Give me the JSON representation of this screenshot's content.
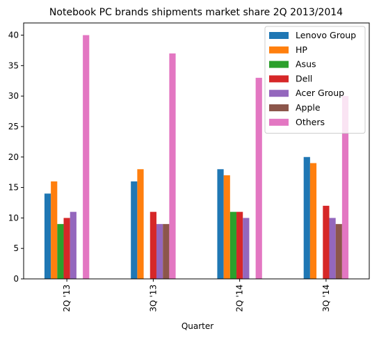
{
  "chart_data": {
    "type": "bar",
    "title": "Notebook PC brands shipments market share 2Q 2013/2014",
    "xlabel": "Quarter",
    "ylabel": "",
    "ylim": [
      0,
      42
    ],
    "yticks": [
      0,
      5,
      10,
      15,
      20,
      25,
      30,
      35,
      40
    ],
    "categories": [
      "2Q '13",
      "3Q '13",
      "2Q '14",
      "3Q '14"
    ],
    "grid": false,
    "legend_position": "top-right",
    "series": [
      {
        "name": "Lenovo Group",
        "color": "#1f77b4",
        "values": [
          14,
          16,
          18,
          20
        ]
      },
      {
        "name": "HP",
        "color": "#ff7f0e",
        "values": [
          16,
          18,
          17,
          19
        ]
      },
      {
        "name": "Asus",
        "color": "#2ca02c",
        "values": [
          9,
          0,
          11,
          0
        ]
      },
      {
        "name": "Dell",
        "color": "#d62728",
        "values": [
          10,
          11,
          11,
          12
        ]
      },
      {
        "name": "Acer Group",
        "color": "#9467bd",
        "values": [
          11,
          9,
          10,
          10
        ]
      },
      {
        "name": "Apple",
        "color": "#8c564b",
        "values": [
          0,
          9,
          0,
          9
        ]
      },
      {
        "name": "Others",
        "color": "#e377c2",
        "values": [
          40,
          37,
          33,
          30
        ]
      }
    ]
  }
}
